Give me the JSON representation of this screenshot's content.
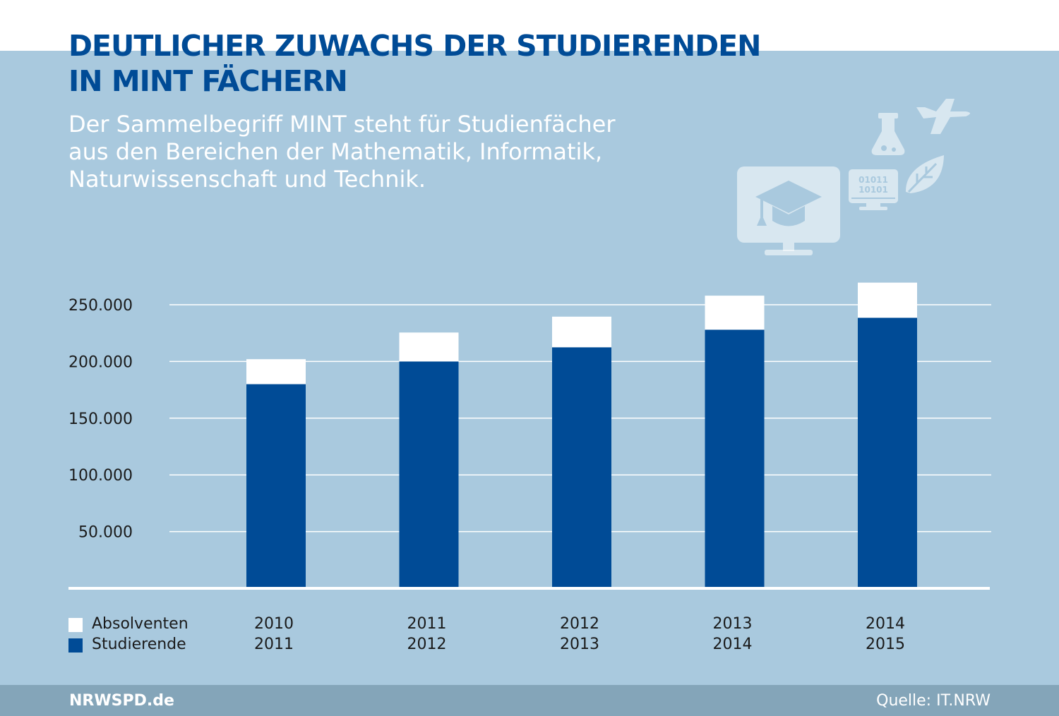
{
  "title_lines": [
    "DEUTLICHER ZUWACHS DER STUDIERENDEN",
    "IN MINT FÄCHERN"
  ],
  "subtitle_lines": [
    "Der Sammelbegriff MINT steht für Studienfächer",
    "aus den Bereichen der Mathematik, Informatik,",
    "Naturwissenschaft und Technik."
  ],
  "footer": {
    "brand": "NRWSPD.de",
    "source": "Quelle: IT.NRW"
  },
  "icons": {
    "binary_line1": "01011",
    "binary_line2": "10101",
    "names": [
      "flask-icon",
      "airplane-icon",
      "graduation-monitor-icon",
      "binary-computer-icon",
      "leaf-icon"
    ]
  },
  "colors": {
    "background_panel": "#a9c9de",
    "title": "#004b96",
    "studierende": "#004b96",
    "absolventen": "#ffffff",
    "footer": "#84a5b9"
  },
  "chart_data": {
    "type": "bar",
    "stacked": true,
    "categories": [
      [
        "2010",
        "2011"
      ],
      [
        "2011",
        "2012"
      ],
      [
        "2012",
        "2013"
      ],
      [
        "2013",
        "2014"
      ],
      [
        "2014",
        "2015"
      ]
    ],
    "series": [
      {
        "name": "Studierende",
        "color": "#004b96",
        "values": [
          180000,
          200000,
          212500,
          228000,
          238500
        ]
      },
      {
        "name": "Absolventen",
        "color": "#ffffff",
        "values": [
          22000,
          25500,
          27000,
          30000,
          31000
        ]
      }
    ],
    "yticks": [
      50000,
      100000,
      150000,
      200000,
      250000
    ],
    "ytick_labels": [
      "50.000",
      "100.000",
      "150.000",
      "200.000",
      "250.000"
    ],
    "ylim": [
      0,
      260000
    ],
    "grid": true,
    "legend": [
      {
        "label": "Absolventen",
        "color": "#ffffff"
      },
      {
        "label": "Studierende",
        "color": "#004b96"
      }
    ],
    "legend_position": "bottom-left"
  }
}
